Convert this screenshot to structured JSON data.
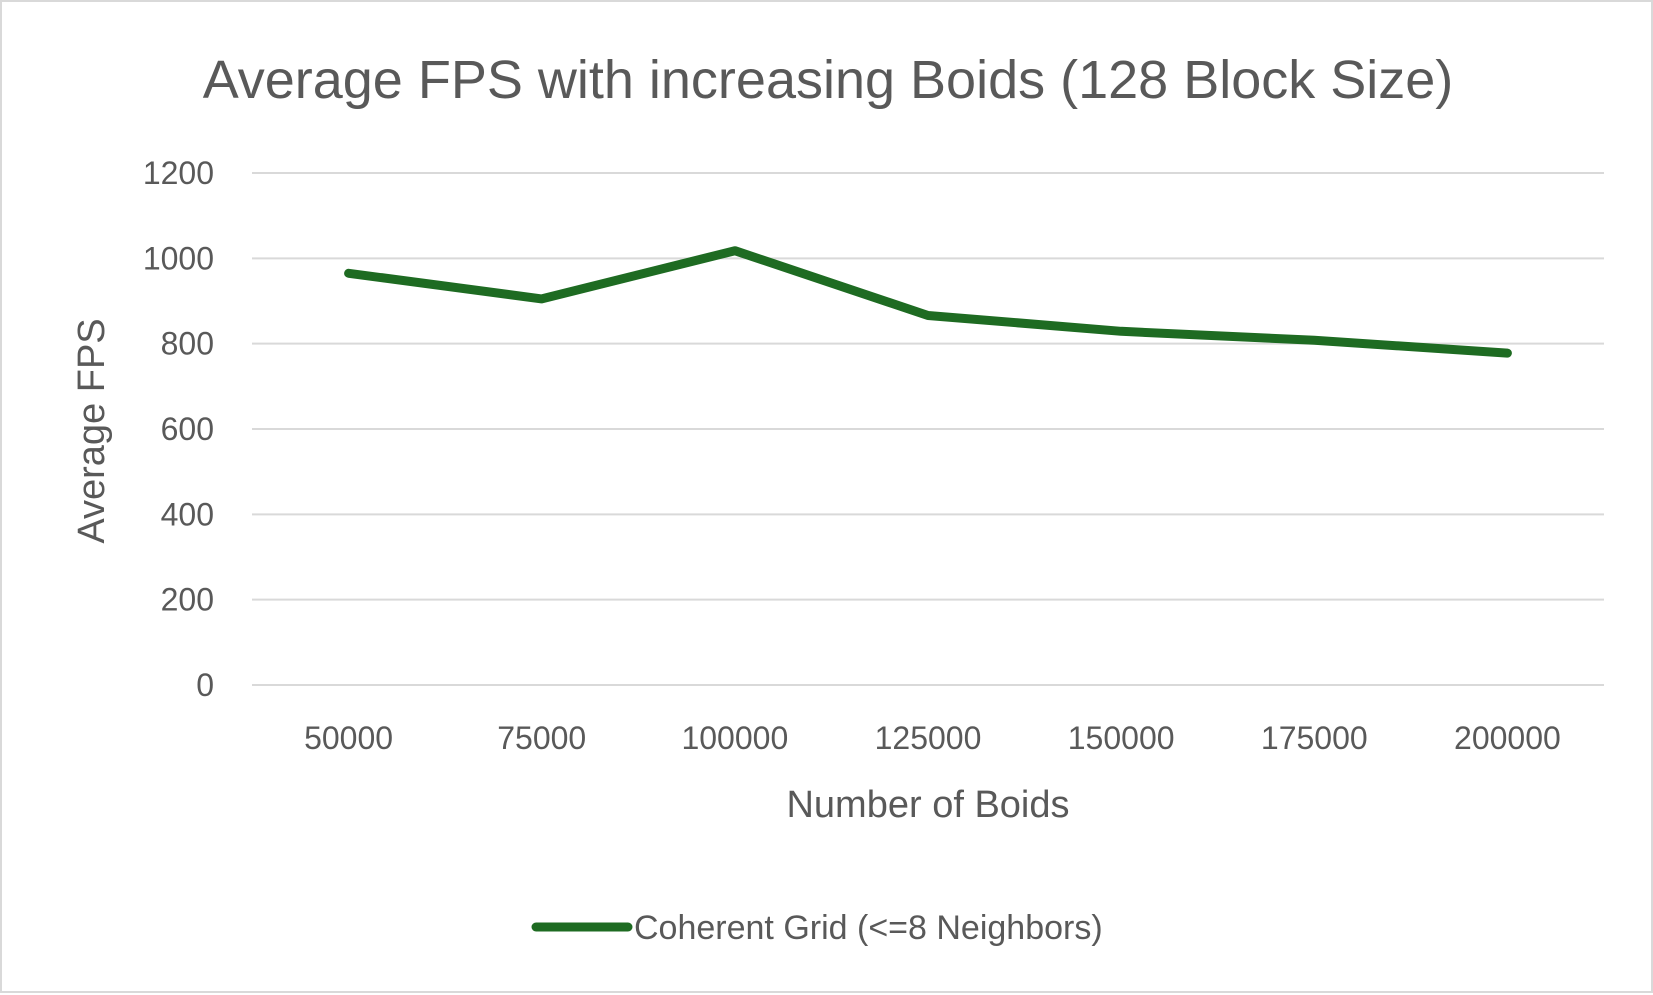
{
  "chart_data": {
    "type": "line",
    "title": "Average FPS with increasing Boids (128 Block Size)",
    "xlabel": "Number of Boids",
    "ylabel": "Average FPS",
    "categories": [
      "50000",
      "75000",
      "100000",
      "125000",
      "150000",
      "175000",
      "200000"
    ],
    "yticks": [
      "0",
      "200",
      "400",
      "600",
      "800",
      "1000",
      "1200"
    ],
    "ylim": [
      0,
      1200
    ],
    "grid": true,
    "legend_position": "bottom",
    "series": [
      {
        "name": "Coherent Grid (<=8 Neighbors)",
        "color": "#1e6b22",
        "values": [
          965,
          905,
          1018,
          866,
          829,
          808,
          778
        ]
      }
    ]
  }
}
